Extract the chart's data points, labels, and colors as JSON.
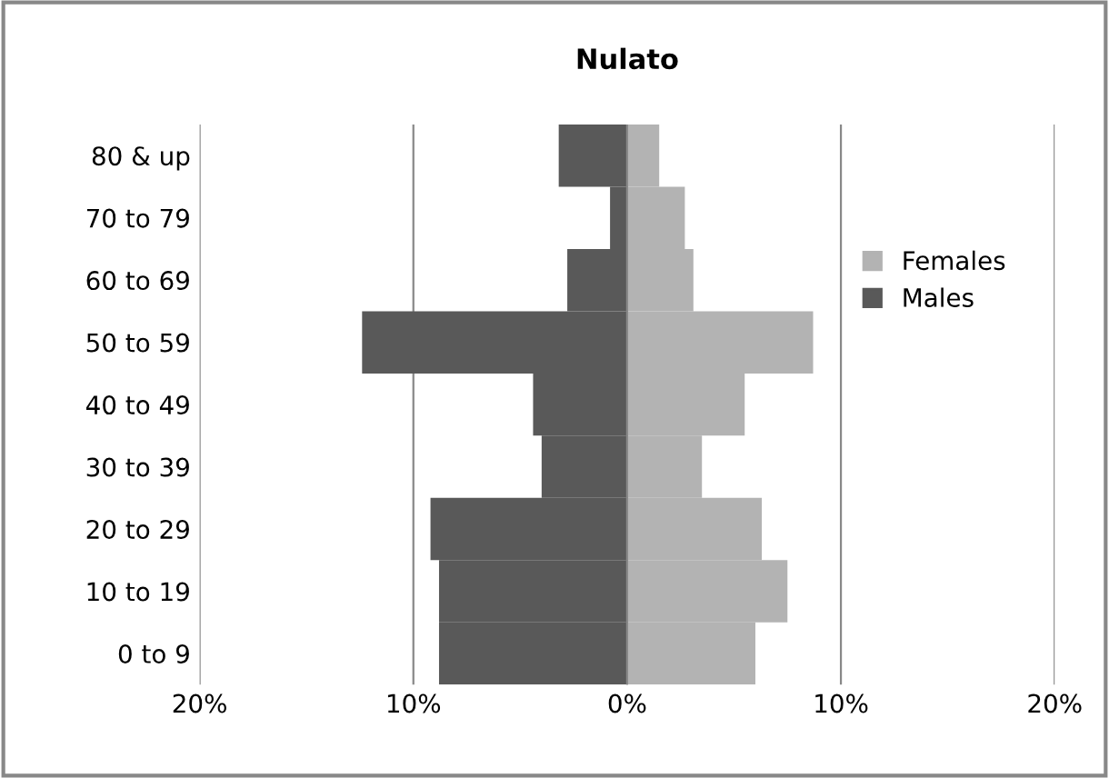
{
  "chart_data": {
    "type": "bar",
    "title": "Nulato",
    "orientation": "horizontal",
    "stacked": true,
    "categories": [
      "80 & up",
      "70 to 79",
      "60 to 69",
      "50 to 59",
      "40 to 49",
      "30 to 39",
      "20 to 29",
      "10 to 19",
      "0 to 9"
    ],
    "series": [
      {
        "name": "Females",
        "color": "#b3b3b3",
        "values": [
          1.5,
          2.7,
          3.1,
          8.7,
          5.5,
          3.5,
          6.3,
          7.5,
          6.0
        ]
      },
      {
        "name": "Males",
        "color": "#595959",
        "values": [
          -3.2,
          -0.8,
          -2.8,
          -12.4,
          -4.4,
          -4.0,
          -9.2,
          -8.8,
          -8.8
        ]
      }
    ],
    "xlim": [
      -20,
      20
    ],
    "xticks": [
      {
        "value": -20,
        "label": "20%"
      },
      {
        "value": -10,
        "label": "10%"
      },
      {
        "value": 0,
        "label": "0%"
      },
      {
        "value": 10,
        "label": "10%"
      },
      {
        "value": 20,
        "label": "20%"
      }
    ],
    "grid": "x",
    "legend": "right"
  }
}
